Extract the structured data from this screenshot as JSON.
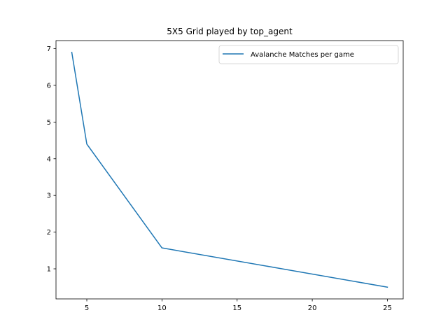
{
  "chart_data": {
    "type": "line",
    "title": "5X5 Grid played by top_agent",
    "xlabel": "",
    "ylabel": "",
    "xlim": [
      2.95,
      26.05
    ],
    "ylim": [
      0.18,
      7.22
    ],
    "xticks": [
      5,
      10,
      15,
      20,
      25
    ],
    "yticks": [
      1,
      2,
      3,
      4,
      5,
      6,
      7
    ],
    "grid": false,
    "legend_position": "top-right",
    "series": [
      {
        "name": "Avalanche Matches per game",
        "color": "#1f77b4",
        "x": [
          4,
          5,
          10,
          25
        ],
        "y": [
          6.9,
          4.4,
          1.57,
          0.5
        ]
      }
    ]
  }
}
